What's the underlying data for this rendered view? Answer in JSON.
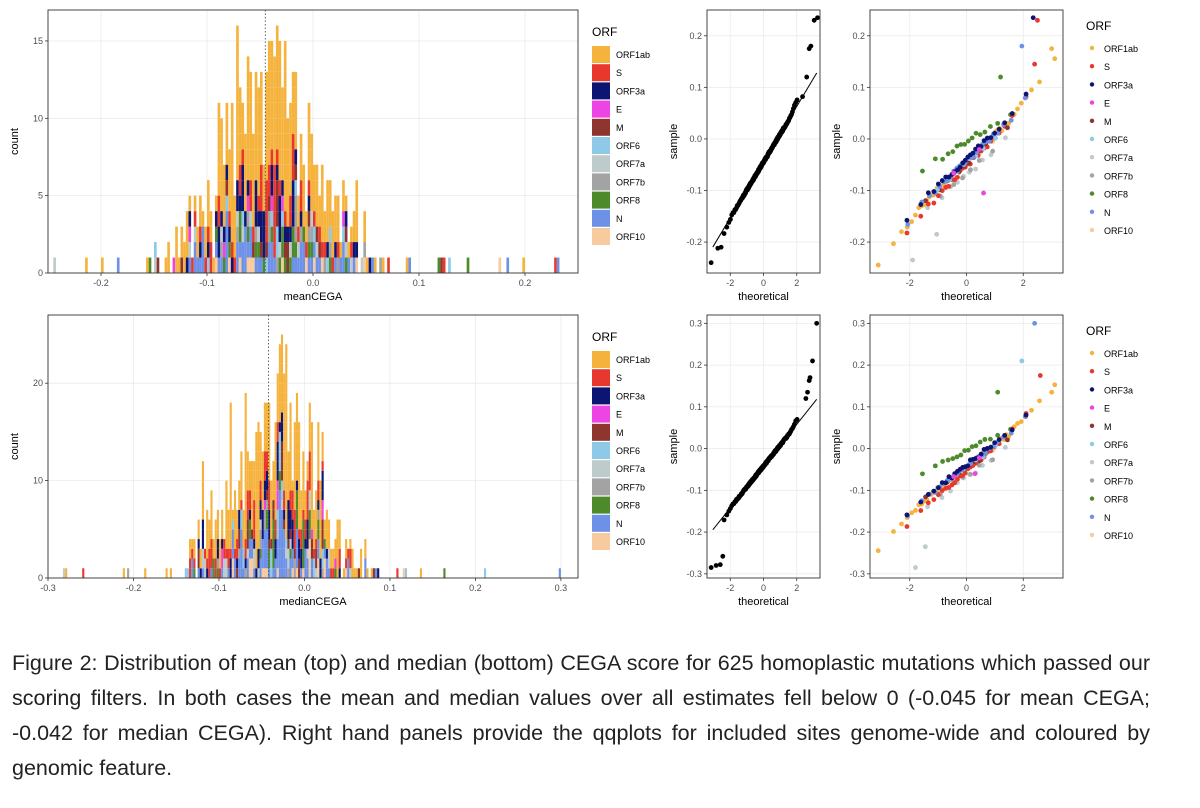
{
  "chart_data": [
    {
      "type": "bar",
      "subtype": "stacked-histogram",
      "panel": "top-left",
      "xlabel": "meanCEGA",
      "ylabel": "count",
      "xlim": [
        -0.25,
        0.25
      ],
      "ylim": [
        0,
        17
      ],
      "x_ticks": [
        "-0.2",
        "-0.1",
        "0.0",
        "0.1",
        "0.2"
      ],
      "y_ticks": [
        "0",
        "5",
        "10",
        "15"
      ],
      "grid": true,
      "vline": -0.045,
      "legend_title": "ORF",
      "legend_position": "right",
      "bin_width": 0.0025,
      "bin_start": -0.245,
      "peak_count": 16,
      "rare_bins": [
        {
          "x": -0.243,
          "group": "ORF7a",
          "count": 1
        },
        {
          "x": -0.215,
          "group": "ORF1ab",
          "count": 1
        },
        {
          "x": -0.198,
          "group": "ORF1ab",
          "count": 1
        },
        {
          "x": -0.185,
          "group": "N",
          "count": 1
        },
        {
          "x": 0.088,
          "group": "ORF1ab",
          "count": 1
        },
        {
          "x": 0.118,
          "group": "ORF8",
          "count": 1
        },
        {
          "x": 0.121,
          "group": "M",
          "count": 1
        },
        {
          "x": 0.124,
          "group": "S",
          "count": 1
        },
        {
          "x": 0.129,
          "group": "ORF6",
          "count": 1
        },
        {
          "x": 0.147,
          "group": "ORF8",
          "count": 1
        },
        {
          "x": 0.175,
          "group": "ORF10",
          "count": 1
        },
        {
          "x": 0.183,
          "group": "N",
          "count": 1
        },
        {
          "x": 0.198,
          "group": "ORF1ab",
          "count": 1
        },
        {
          "x": 0.228,
          "group": "S",
          "count": 1
        },
        {
          "x": 0.232,
          "group": "N",
          "count": 1
        }
      ]
    },
    {
      "type": "scatter",
      "subtype": "qqplot",
      "panel": "top-middle",
      "xlabel": "theoretical",
      "ylabel": "sample",
      "xlim": [
        -3.4,
        3.4
      ],
      "ylim": [
        -0.26,
        0.25
      ],
      "x_ticks": [
        "-2",
        "0",
        "2"
      ],
      "y_ticks": [
        "-0.2",
        "-0.1",
        "0.0",
        "0.1",
        "0.2"
      ],
      "grid": true,
      "reference_line": {
        "intercept": -0.045,
        "slope": 0.054
      },
      "n": 625,
      "tail_points": [
        {
          "x": -3.15,
          "y": -0.24
        },
        {
          "x": -2.75,
          "y": -0.212
        },
        {
          "x": -2.55,
          "y": -0.21
        },
        {
          "x": 2.35,
          "y": 0.082
        },
        {
          "x": 2.6,
          "y": 0.12
        },
        {
          "x": 2.75,
          "y": 0.175
        },
        {
          "x": 2.85,
          "y": 0.18
        },
        {
          "x": 3.05,
          "y": 0.23
        },
        {
          "x": 3.25,
          "y": 0.235
        }
      ]
    },
    {
      "type": "scatter",
      "subtype": "qqplot-by-group",
      "panel": "top-right",
      "xlabel": "theoretical",
      "ylabel": "sample",
      "xlim": [
        -3.4,
        3.4
      ],
      "ylim": [
        -0.26,
        0.25
      ],
      "x_ticks": [
        "-2",
        "0",
        "2"
      ],
      "y_ticks": [
        "-0.2",
        "-0.1",
        "0.0",
        "0.1",
        "0.2"
      ],
      "grid": true,
      "legend_title": "ORF",
      "legend_position": "right",
      "highlights": [
        {
          "group": "ORF1ab",
          "x": 3.0,
          "y": 0.175
        },
        {
          "group": "ORF3a",
          "x": 2.35,
          "y": 0.235
        },
        {
          "group": "S",
          "x": 2.5,
          "y": 0.23
        },
        {
          "group": "N",
          "x": 1.95,
          "y": 0.18
        },
        {
          "group": "S",
          "x": 2.4,
          "y": 0.145
        },
        {
          "group": "ORF8",
          "x": 1.2,
          "y": 0.12
        },
        {
          "group": "E",
          "x": 0.6,
          "y": -0.105
        },
        {
          "group": "ORF7a",
          "x": -1.9,
          "y": -0.235
        },
        {
          "group": "ORF7a",
          "x": -1.05,
          "y": -0.185
        }
      ]
    },
    {
      "type": "bar",
      "subtype": "stacked-histogram",
      "panel": "bottom-left",
      "xlabel": "medianCEGA",
      "ylabel": "count",
      "xlim": [
        -0.3,
        0.32
      ],
      "ylim": [
        0,
        27
      ],
      "x_ticks": [
        "-0.3",
        "-0.2",
        "-0.1",
        "0.0",
        "0.1",
        "0.2",
        "0.3"
      ],
      "y_ticks": [
        "0",
        "10",
        "20"
      ],
      "grid": true,
      "vline": -0.042,
      "legend_title": "ORF",
      "legend_position": "right",
      "bin_width": 0.0025,
      "bin_start": -0.285,
      "peak_count": 25,
      "rare_bins": [
        {
          "x": -0.282,
          "group": "ORF7a",
          "count": 1
        },
        {
          "x": -0.278,
          "group": "ORF1ab",
          "count": 1
        },
        {
          "x": -0.258,
          "group": "S",
          "count": 1
        },
        {
          "x": -0.212,
          "group": "ORF1ab",
          "count": 1
        },
        {
          "x": -0.205,
          "group": "ORF7b",
          "count": 1
        },
        {
          "x": 0.11,
          "group": "S",
          "count": 1
        },
        {
          "x": 0.117,
          "group": "ORF10",
          "count": 1
        },
        {
          "x": 0.12,
          "group": "ORF6",
          "count": 1
        },
        {
          "x": 0.135,
          "group": "ORF1ab",
          "count": 1
        },
        {
          "x": 0.163,
          "group": "ORF8",
          "count": 1
        },
        {
          "x": 0.21,
          "group": "ORF6",
          "count": 1
        },
        {
          "x": 0.3,
          "group": "N",
          "count": 1
        }
      ]
    },
    {
      "type": "scatter",
      "subtype": "qqplot",
      "panel": "bottom-middle",
      "xlabel": "theoretical",
      "ylabel": "sample",
      "xlim": [
        -3.4,
        3.4
      ],
      "ylim": [
        -0.31,
        0.32
      ],
      "x_ticks": [
        "-2",
        "0",
        "2"
      ],
      "y_ticks": [
        "-0.3",
        "-0.2",
        "-0.1",
        "0.0",
        "0.1",
        "0.2",
        "0.3"
      ],
      "grid": true,
      "reference_line": {
        "intercept": -0.042,
        "slope": 0.05
      },
      "n": 625,
      "tail_points": [
        {
          "x": -3.15,
          "y": -0.285
        },
        {
          "x": -2.85,
          "y": -0.28
        },
        {
          "x": -2.6,
          "y": -0.278
        },
        {
          "x": -2.45,
          "y": -0.258
        },
        {
          "x": 2.55,
          "y": 0.12
        },
        {
          "x": 2.65,
          "y": 0.135
        },
        {
          "x": 2.75,
          "y": 0.163
        },
        {
          "x": 2.8,
          "y": 0.17
        },
        {
          "x": 2.95,
          "y": 0.21
        },
        {
          "x": 3.2,
          "y": 0.3
        }
      ]
    },
    {
      "type": "scatter",
      "subtype": "qqplot-by-group",
      "panel": "bottom-right",
      "xlabel": "theoretical",
      "ylabel": "sample",
      "xlim": [
        -3.4,
        3.4
      ],
      "ylim": [
        -0.31,
        0.32
      ],
      "x_ticks": [
        "-2",
        "0",
        "2"
      ],
      "y_ticks": [
        "-0.3",
        "-0.2",
        "-0.1",
        "0.0",
        "0.1",
        "0.2",
        "0.3"
      ],
      "grid": true,
      "legend_title": "ORF",
      "legend_position": "right",
      "highlights": [
        {
          "group": "N",
          "x": 2.4,
          "y": 0.3
        },
        {
          "group": "ORF6",
          "x": 1.95,
          "y": 0.21
        },
        {
          "group": "S",
          "x": 2.6,
          "y": 0.175
        },
        {
          "group": "ORF1ab",
          "x": 3.0,
          "y": 0.135
        },
        {
          "group": "ORF8",
          "x": 1.1,
          "y": 0.135
        },
        {
          "group": "E",
          "x": 0.3,
          "y": -0.06
        },
        {
          "group": "ORF7a",
          "x": -1.8,
          "y": -0.285
        },
        {
          "group": "ORF7a",
          "x": -1.45,
          "y": -0.235
        }
      ]
    }
  ],
  "groups": [
    {
      "name": "ORF1ab",
      "color": "#F5B33E",
      "weight": 0.53
    },
    {
      "name": "S",
      "color": "#E8382E",
      "weight": 0.09
    },
    {
      "name": "ORF3a",
      "color": "#0D1573",
      "weight": 0.08
    },
    {
      "name": "E",
      "color": "#EC45E3",
      "weight": 0.01
    },
    {
      "name": "M",
      "color": "#8F3530",
      "weight": 0.04
    },
    {
      "name": "ORF6",
      "color": "#8EC9E8",
      "weight": 0.02
    },
    {
      "name": "ORF7a",
      "color": "#BDCBCB",
      "weight": 0.04
    },
    {
      "name": "ORF7b",
      "color": "#A3A3A3",
      "weight": 0.02
    },
    {
      "name": "ORF8",
      "color": "#4C8A2C",
      "weight": 0.04
    },
    {
      "name": "N",
      "color": "#6E91E8",
      "weight": 0.11
    },
    {
      "name": "ORF10",
      "color": "#F8CB9E",
      "weight": 0.02
    }
  ],
  "caption": "Figure 2: Distribution of mean (top) and median (bottom) CEGA score for 625 homoplastic mutations which passed our scoring filters. In both cases the mean and median values over all estimates fell below 0 (-0.045 for mean CEGA; -0.042 for median CEGA). Right hand panels provide the qqplots for included sites genome-wide and coloured by genomic feature."
}
